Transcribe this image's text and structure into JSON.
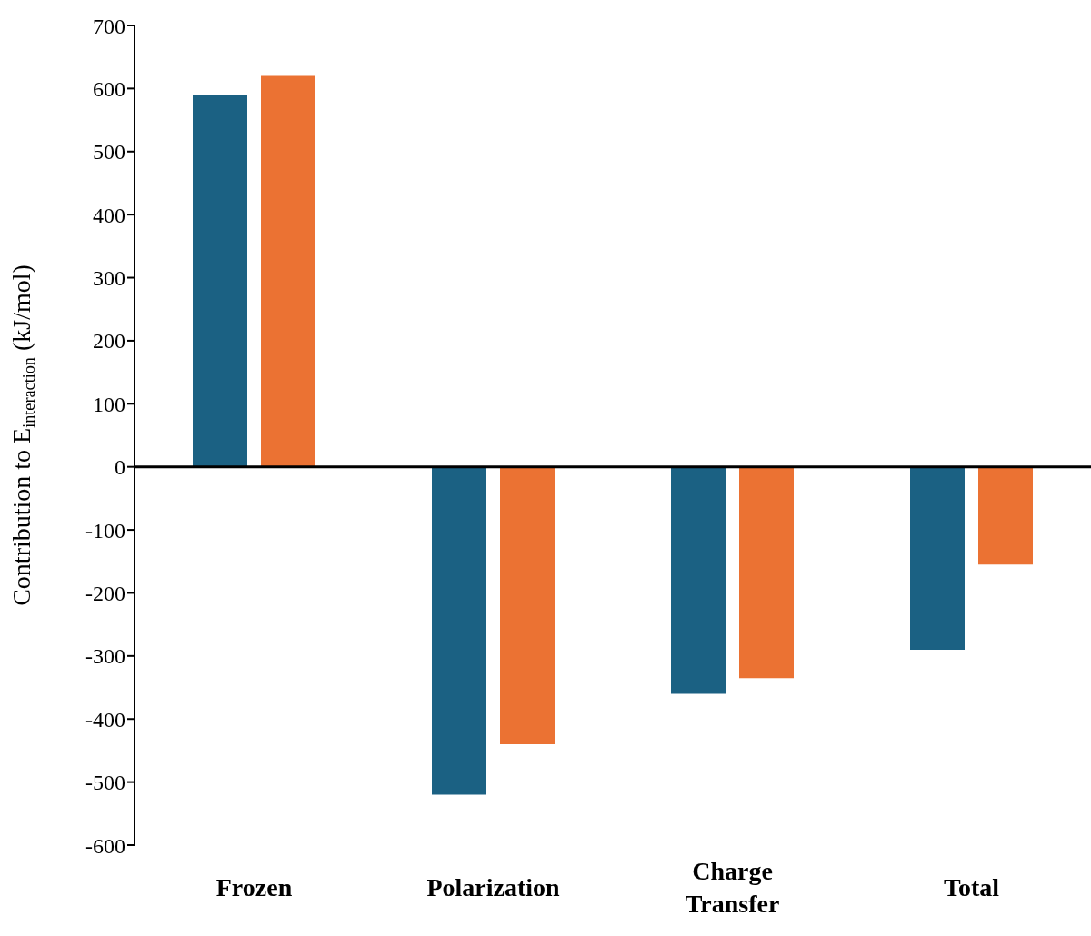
{
  "chart_data": {
    "type": "bar",
    "ylabel": "Contribution to E$_{interaction}$ (kJ/mol)",
    "categories": [
      "Frozen",
      "Polarization",
      "Charge Transfer",
      "Total"
    ],
    "series": [
      {
        "color": "#1b6183",
        "values": [
          590,
          -520,
          -360,
          -290
        ]
      },
      {
        "color": "#eb7233",
        "values": [
          620,
          -440,
          -335,
          -155
        ]
      }
    ],
    "ylim": [
      -600,
      700
    ],
    "yticks": [
      -600,
      -500,
      -400,
      -300,
      -200,
      -100,
      0,
      100,
      200,
      300,
      400,
      500,
      600,
      700
    ]
  }
}
